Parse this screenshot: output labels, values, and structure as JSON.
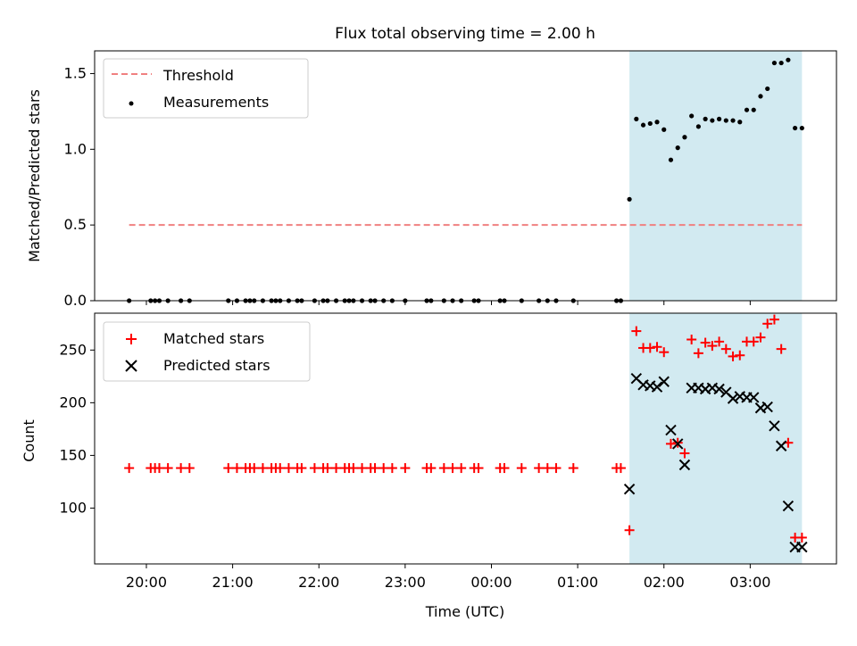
{
  "chart_data": {
    "title": "Flux total observing time = 2.00 h",
    "xlabel": "Time (UTC)",
    "x_unit": "hours since 00:00 UTC (negative = previous evening)",
    "x_ticks": [
      {
        "x": -4,
        "label": "20:00"
      },
      {
        "x": -3,
        "label": "21:00"
      },
      {
        "x": -2,
        "label": "22:00"
      },
      {
        "x": -1,
        "label": "23:00"
      },
      {
        "x": 0,
        "label": "00:00"
      },
      {
        "x": 1,
        "label": "01:00"
      },
      {
        "x": 2,
        "label": "02:00"
      },
      {
        "x": 3,
        "label": "03:00"
      }
    ],
    "xlim": [
      -4.6,
      4.0
    ],
    "shaded_region": {
      "start": 1.6,
      "end": 3.6,
      "color": "#add8e6"
    },
    "panels": [
      {
        "type": "scatter",
        "ylabel": "Matched/Predicted stars",
        "ylim": [
          0,
          1.65
        ],
        "yticks": [
          0.0,
          0.5,
          1.0,
          1.5
        ],
        "ytick_labels": [
          "0.0",
          "0.5",
          "1.0",
          "1.5"
        ],
        "legend": {
          "placement": "top-left",
          "entries": [
            {
              "label": "Threshold",
              "style": "dashed-line",
              "color": "#f08080"
            },
            {
              "label": "Measurements",
              "style": "dot",
              "color": "#000000"
            }
          ]
        },
        "threshold": {
          "value": 0.5,
          "x_start": -4.2,
          "x_end": 3.6,
          "color": "#f08080"
        },
        "measurements": {
          "name": "Measurements",
          "x": [
            -4.2,
            -3.95,
            -3.9,
            -3.85,
            -3.75,
            -3.6,
            -3.5,
            -3.05,
            -2.95,
            -2.85,
            -2.8,
            -2.75,
            -2.65,
            -2.55,
            -2.5,
            -2.45,
            -2.35,
            -2.25,
            -2.2,
            -2.05,
            -1.95,
            -1.9,
            -1.8,
            -1.7,
            -1.65,
            -1.6,
            -1.5,
            -1.4,
            -1.35,
            -1.25,
            -1.15,
            -1.0,
            -0.75,
            -0.7,
            -0.55,
            -0.45,
            -0.35,
            -0.2,
            -0.15,
            0.1,
            0.15,
            0.35,
            0.55,
            0.65,
            0.75,
            0.95,
            1.45,
            1.5,
            1.6,
            1.68,
            1.76,
            1.84,
            1.92,
            2.0,
            2.08,
            2.16,
            2.24,
            2.32,
            2.4,
            2.48,
            2.56,
            2.64,
            2.72,
            2.8,
            2.88,
            2.96,
            3.04,
            3.12,
            3.2,
            3.28,
            3.36,
            3.44,
            3.52,
            3.6
          ],
          "y": [
            0,
            0,
            0,
            0,
            0,
            0,
            0,
            0,
            0,
            0,
            0,
            0,
            0,
            0,
            0,
            0,
            0,
            0,
            0,
            0,
            0,
            0,
            0,
            0,
            0,
            0,
            0,
            0,
            0,
            0,
            0,
            0,
            0,
            0,
            0,
            0,
            0,
            0,
            0,
            0,
            0,
            0,
            0,
            0,
            0,
            0,
            0,
            0,
            0.67,
            1.2,
            1.16,
            1.17,
            1.18,
            1.13,
            0.93,
            1.01,
            1.08,
            1.22,
            1.15,
            1.2,
            1.19,
            1.2,
            1.19,
            1.19,
            1.18,
            1.26,
            1.26,
            1.35,
            1.4,
            1.57,
            1.57,
            1.59,
            1.14,
            1.14
          ]
        }
      },
      {
        "type": "scatter",
        "ylabel": "Count",
        "ylim": [
          47,
          285
        ],
        "yticks": [
          100,
          150,
          200,
          250
        ],
        "ytick_labels": [
          "100",
          "150",
          "200",
          "250"
        ],
        "legend": {
          "placement": "top-left",
          "entries": [
            {
              "label": "Matched stars",
              "style": "plus",
              "color": "#ff0000"
            },
            {
              "label": "Predicted stars",
              "style": "x",
              "color": "#000000"
            }
          ]
        },
        "series": [
          {
            "name": "Matched stars",
            "marker": "plus",
            "color": "#ff0000",
            "x": [
              -4.2,
              -3.95,
              -3.9,
              -3.85,
              -3.75,
              -3.6,
              -3.5,
              -3.05,
              -2.95,
              -2.85,
              -2.8,
              -2.75,
              -2.65,
              -2.55,
              -2.5,
              -2.45,
              -2.35,
              -2.25,
              -2.2,
              -2.05,
              -1.95,
              -1.9,
              -1.8,
              -1.7,
              -1.65,
              -1.6,
              -1.5,
              -1.4,
              -1.35,
              -1.25,
              -1.15,
              -1.0,
              -0.75,
              -0.7,
              -0.55,
              -0.45,
              -0.35,
              -0.2,
              -0.15,
              0.1,
              0.15,
              0.35,
              0.55,
              0.65,
              0.75,
              0.95,
              1.45,
              1.5,
              1.6,
              1.68,
              1.76,
              1.84,
              1.92,
              2.0,
              2.08,
              2.16,
              2.24,
              2.32,
              2.4,
              2.48,
              2.56,
              2.64,
              2.72,
              2.8,
              2.88,
              2.96,
              3.04,
              3.12,
              3.2,
              3.28,
              3.36,
              3.44,
              3.52,
              3.6
            ],
            "y": [
              138,
              138,
              138,
              138,
              138,
              138,
              138,
              138,
              138,
              138,
              138,
              138,
              138,
              138,
              138,
              138,
              138,
              138,
              138,
              138,
              138,
              138,
              138,
              138,
              138,
              138,
              138,
              138,
              138,
              138,
              138,
              138,
              138,
              138,
              138,
              138,
              138,
              138,
              138,
              138,
              138,
              138,
              138,
              138,
              138,
              138,
              138,
              138,
              79,
              268,
              252,
              252,
              253,
              248,
              161,
              162,
              152,
              260,
              247,
              257,
              254,
              258,
              251,
              244,
              245,
              258,
              258,
              262,
              275,
              279,
              251,
              162,
              72,
              72
            ]
          },
          {
            "name": "Predicted stars",
            "marker": "x",
            "color": "#000000",
            "x": [
              1.6,
              1.68,
              1.76,
              1.84,
              1.92,
              2.0,
              2.08,
              2.16,
              2.24,
              2.32,
              2.4,
              2.48,
              2.56,
              2.64,
              2.72,
              2.8,
              2.88,
              2.96,
              3.04,
              3.12,
              3.2,
              3.28,
              3.36,
              3.44,
              3.52,
              3.6
            ],
            "y": [
              118,
              223,
              217,
              216,
              215,
              220,
              174,
              161,
              141,
              214,
              214,
              213,
              214,
              213,
              210,
              204,
              206,
              205,
              205,
              195,
              196,
              178,
              159,
              102,
              63,
              63
            ]
          }
        ]
      }
    ]
  }
}
